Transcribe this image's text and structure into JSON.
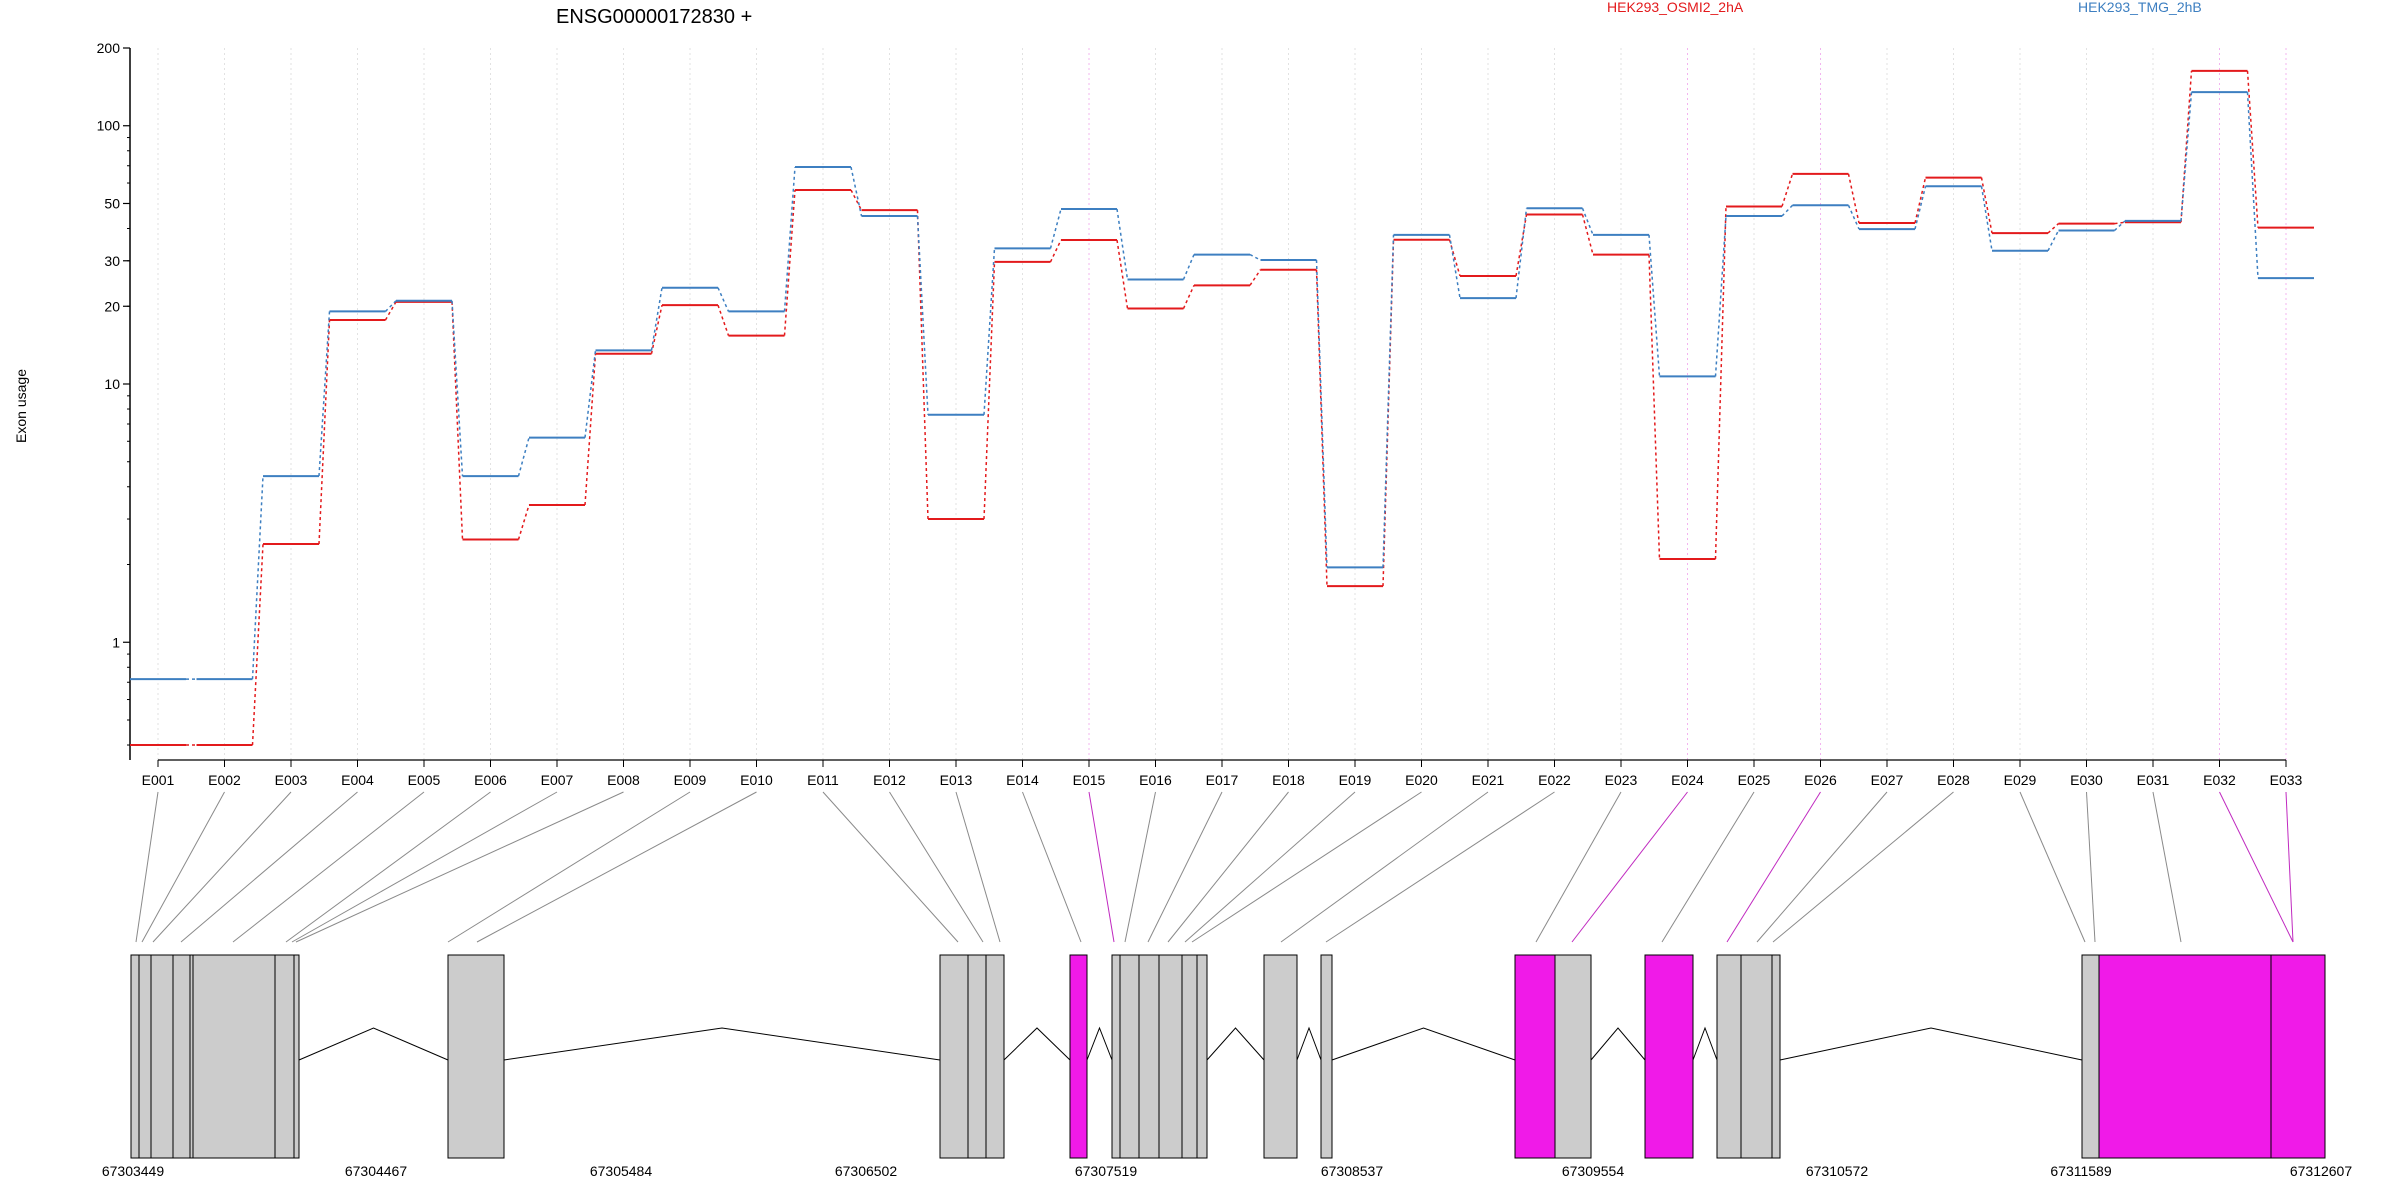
{
  "chart_data": {
    "type": "line",
    "title": "ENSG00000172830 +",
    "ylabel": "Exon usage",
    "yscale": "log",
    "ylim": [
      0.35,
      200
    ],
    "yticks": [
      1,
      10,
      20,
      30,
      50,
      100,
      200
    ],
    "ytick_labels": [
      "1",
      "10",
      "20",
      "30",
      "50",
      "100",
      "200"
    ],
    "grid": "vertical dotted lines at each exon",
    "legend_placement": "top-right",
    "categories": [
      "E001",
      "E002",
      "E003",
      "E004",
      "E005",
      "E006",
      "E007",
      "E008",
      "E009",
      "E010",
      "E011",
      "E012",
      "E013",
      "E014",
      "E015",
      "E016",
      "E017",
      "E018",
      "E019",
      "E020",
      "E021",
      "E022",
      "E023",
      "E024",
      "E025",
      "E026",
      "E027",
      "E028",
      "E029",
      "E030",
      "E031",
      "E032",
      "E033"
    ],
    "series": [
      {
        "name": "HEK293_OSMI2_2hA",
        "color": "#e31a1c",
        "values": [
          0.4,
          0.4,
          2.4,
          17.7,
          20.8,
          2.5,
          3.4,
          13.1,
          20.2,
          15.4,
          56.4,
          47.1,
          3,
          29.7,
          36.1,
          19.6,
          24.1,
          27.7,
          1.65,
          36.2,
          26.2,
          45.3,
          31.7,
          2.1,
          48.7,
          65.1,
          42,
          63,
          38.4,
          41.8,
          42.3,
          163.1,
          40.3
        ]
      },
      {
        "name": "HEK293_TMG_2hB",
        "color": "#3d7fc1",
        "values": [
          0.72,
          0.72,
          4.4,
          19.1,
          21,
          4.4,
          6.2,
          13.5,
          23.6,
          19.1,
          69.2,
          44.7,
          7.6,
          33.5,
          47.6,
          25.4,
          31.7,
          30.2,
          1.95,
          37.8,
          21.5,
          47.9,
          37.8,
          10.7,
          44.7,
          49.2,
          39.8,
          58.3,
          32.8,
          39.3,
          42.8,
          134.9,
          25.7
        ]
      }
    ],
    "gene_model": {
      "coordinate_labels": [
        "67303449",
        "67304467",
        "67305484",
        "67306502",
        "67307519",
        "67308537",
        "67309554",
        "67310572",
        "67311589",
        "67312607"
      ],
      "exon_color_default": "#cccccc",
      "exon_color_highlight": "#f01ae8",
      "highlighted_exons": [
        "E015",
        "E024",
        "E026",
        "E032",
        "E033"
      ]
    }
  }
}
